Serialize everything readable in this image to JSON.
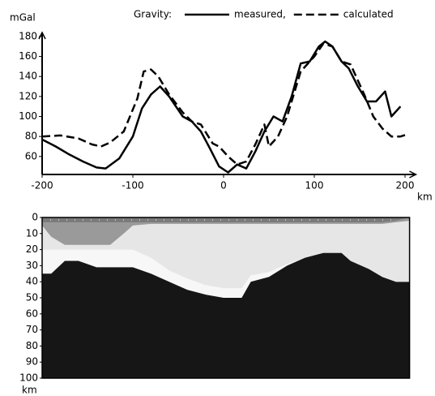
{
  "chart_data": [
    {
      "type": "line",
      "y_label": "mGal",
      "x_label": "km",
      "legend_title": "Gravity:",
      "xlim": [
        -200,
        212
      ],
      "ylim": [
        42,
        184
      ],
      "xticks": [
        -200,
        -100,
        0,
        100,
        200
      ],
      "yticks": [
        60,
        80,
        100,
        120,
        140,
        160,
        180
      ],
      "series": [
        {
          "name": "measured,",
          "color": "#000000",
          "dash": false,
          "x": [
            -200,
            -185,
            -170,
            -155,
            -140,
            -130,
            -115,
            -100,
            -90,
            -80,
            -70,
            -60,
            -45,
            -35,
            -25,
            -15,
            -5,
            5,
            15,
            25,
            35,
            45,
            55,
            65,
            75,
            85,
            95,
            105,
            112,
            120,
            130,
            138,
            148,
            158,
            168,
            178,
            185,
            195
          ],
          "values": [
            77,
            70,
            62,
            55,
            49,
            48,
            58,
            80,
            108,
            122,
            130,
            120,
            100,
            95,
            85,
            68,
            50,
            44,
            52,
            48,
            65,
            85,
            100,
            95,
            120,
            153,
            155,
            170,
            175,
            170,
            155,
            148,
            130,
            115,
            115,
            125,
            100,
            110
          ]
        },
        {
          "name": "calculated",
          "color": "#000000",
          "dash": true,
          "x": [
            -200,
            -180,
            -160,
            -145,
            -135,
            -125,
            -110,
            -95,
            -88,
            -80,
            -72,
            -60,
            -45,
            -35,
            -25,
            -12,
            -5,
            5,
            15,
            25,
            35,
            45,
            50,
            60,
            70,
            85,
            100,
            110,
            120,
            130,
            140,
            155,
            165,
            175,
            185,
            195,
            202
          ],
          "values": [
            80,
            81,
            78,
            72,
            70,
            74,
            85,
            118,
            145,
            147,
            140,
            122,
            104,
            95,
            92,
            73,
            70,
            60,
            52,
            55,
            72,
            92,
            70,
            80,
            100,
            145,
            160,
            173,
            170,
            155,
            152,
            122,
            100,
            88,
            80,
            80,
            82
          ]
        }
      ]
    },
    {
      "type": "section",
      "x_label": "km",
      "background": "#161616",
      "xlim": [
        -200,
        205
      ],
      "ylim": [
        0,
        100
      ],
      "yticks": [
        0,
        10,
        20,
        30,
        40,
        50,
        60,
        70,
        80,
        90,
        100
      ],
      "x": [
        -200,
        -190,
        -175,
        -160,
        -140,
        -125,
        -110,
        -100,
        -80,
        -60,
        -40,
        -20,
        0,
        20,
        30,
        50,
        70,
        90,
        110,
        130,
        140,
        160,
        175,
        190,
        205
      ],
      "layers": [
        {
          "color": "#f7f7f7",
          "depths": [
            35,
            35,
            27,
            27,
            31,
            31,
            31,
            31,
            35,
            40,
            45,
            48,
            50,
            50,
            40,
            37,
            30,
            25,
            22,
            22,
            27,
            32,
            37,
            40,
            40
          ]
        },
        {
          "color": "#e6e6e6",
          "depths": [
            20,
            20,
            20,
            20,
            20,
            20,
            20,
            20,
            25,
            33,
            38,
            42,
            44,
            44,
            36,
            34,
            29,
            25,
            22,
            22,
            27,
            32,
            37,
            40,
            40
          ]
        },
        {
          "color": "#9a9a9a",
          "depths": [
            5,
            12,
            17,
            17,
            17,
            17,
            10,
            5,
            4,
            4,
            4,
            4,
            4,
            4,
            4,
            4,
            4,
            4,
            4,
            4,
            4,
            4,
            4,
            3,
            2
          ]
        },
        {
          "color": "#7a7a7a",
          "depths": [
            3,
            3,
            3,
            3,
            3,
            3,
            3,
            3,
            3,
            3,
            3,
            3,
            3,
            3,
            3,
            3,
            3,
            3,
            3,
            3,
            3,
            3,
            3,
            2,
            0
          ]
        }
      ]
    }
  ]
}
